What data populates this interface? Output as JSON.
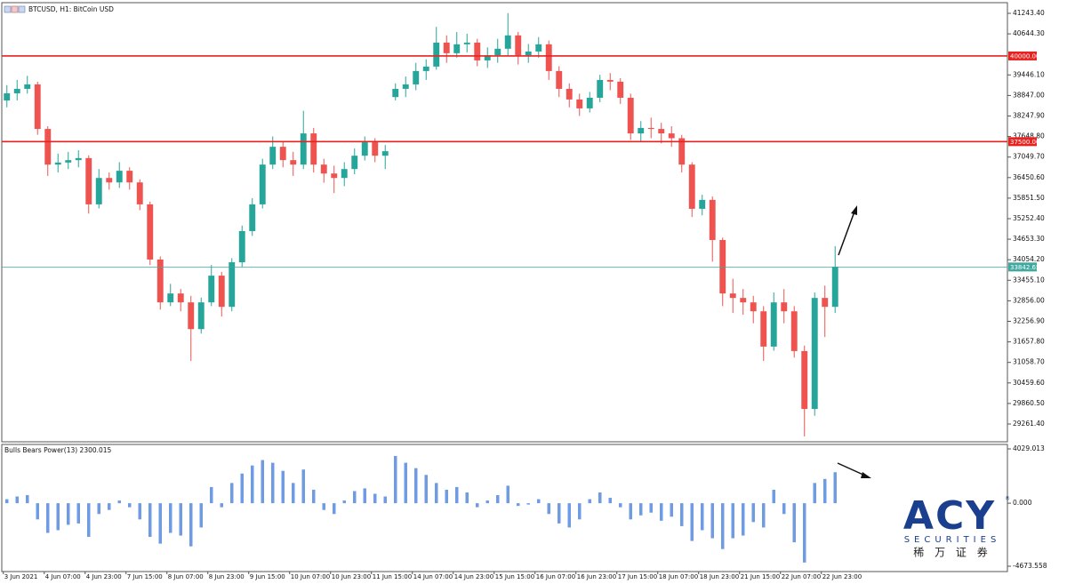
{
  "chart_data": [
    {
      "type": "candlestick",
      "title": "BTCUSD, H1:  BitCoin USD",
      "open": [
        38700,
        38910,
        39040,
        39170,
        37870,
        36830,
        36890,
        36960,
        37020,
        35670,
        36440,
        36310,
        36650,
        36310,
        35670,
        34060,
        32810,
        33070,
        32810,
        32030,
        32810,
        33590,
        32680,
        33980,
        34890,
        35670,
        36830,
        37350,
        36960,
        36830,
        37740,
        36830,
        36570,
        36440,
        36700,
        37090,
        37480,
        37090,
        38800,
        39040,
        39170,
        39560,
        39690,
        40390,
        40080,
        40340,
        40390,
        39870,
        40020,
        40210,
        40600,
        40020,
        40130,
        40340,
        39560,
        39040,
        38730,
        38470,
        38780,
        39300,
        39250,
        38780,
        37740,
        37900,
        37870,
        37740,
        37600,
        36830,
        35540,
        35800,
        34630,
        33070,
        32940,
        32810,
        32550,
        31520,
        32810,
        32550,
        31390,
        29700,
        32940,
        32680
      ],
      "high": [
        39150,
        39300,
        39420,
        39250,
        37950,
        37150,
        37200,
        37250,
        37100,
        36700,
        36600,
        36900,
        36750,
        36400,
        35750,
        34150,
        33350,
        33200,
        33000,
        32950,
        33900,
        33700,
        34100,
        35050,
        35850,
        37000,
        37650,
        37500,
        37200,
        38400,
        37900,
        37000,
        36800,
        36900,
        37300,
        37650,
        37600,
        37400,
        39200,
        39400,
        39800,
        39900,
        40850,
        40600,
        40700,
        40650,
        40500,
        40250,
        40500,
        41250,
        40700,
        40350,
        40550,
        40450,
        39700,
        39200,
        38900,
        38950,
        39450,
        39500,
        39350,
        38900,
        38100,
        38200,
        38050,
        37950,
        37700,
        36900,
        35950,
        35900,
        34700,
        33500,
        33200,
        33000,
        32700,
        33100,
        33200,
        32700,
        31550,
        33100,
        33300,
        34450
      ],
      "low": [
        38500,
        38700,
        38900,
        37700,
        36500,
        36600,
        36700,
        36750,
        35400,
        35550,
        36100,
        36150,
        36100,
        35500,
        33900,
        32600,
        32700,
        32550,
        31100,
        31900,
        32700,
        32400,
        32550,
        33850,
        34750,
        35550,
        36700,
        36750,
        36500,
        36700,
        36600,
        36300,
        36000,
        36200,
        36550,
        36950,
        36900,
        36700,
        38700,
        38800,
        39000,
        39300,
        39600,
        39800,
        39950,
        40100,
        39700,
        39650,
        39800,
        40000,
        39750,
        39800,
        39950,
        39300,
        38800,
        38500,
        38250,
        38350,
        38650,
        39000,
        38600,
        37550,
        37500,
        37600,
        37450,
        37350,
        36600,
        35300,
        35350,
        34000,
        32700,
        32500,
        32450,
        32200,
        31100,
        31400,
        32200,
        31200,
        28900,
        29500,
        31800,
        32500
      ],
      "close": [
        38910,
        39040,
        39170,
        37870,
        36830,
        36890,
        36960,
        37020,
        35670,
        36440,
        36310,
        36650,
        36310,
        35670,
        34060,
        32810,
        33070,
        32810,
        32030,
        32810,
        33590,
        32680,
        33980,
        34890,
        35670,
        36830,
        37350,
        36960,
        36830,
        37740,
        36830,
        36570,
        36440,
        36700,
        37090,
        37480,
        37090,
        37220,
        39040,
        39170,
        39560,
        39690,
        40390,
        40080,
        40340,
        40390,
        39870,
        40020,
        40210,
        40600,
        40020,
        40130,
        40340,
        39560,
        39040,
        38730,
        38470,
        38780,
        39300,
        39250,
        38780,
        37740,
        37900,
        37870,
        37740,
        37600,
        36830,
        35540,
        35800,
        34630,
        33070,
        32940,
        32810,
        32550,
        31520,
        32810,
        32550,
        31390,
        29700,
        32940,
        32680,
        33842.65
      ],
      "up_color": "#26a69a",
      "down_color": "#ef5350",
      "xlim": [
        -0.5,
        97.85
      ],
      "ylim": [
        28742.7,
        41554.6
      ],
      "yticks": [
        {
          "value": 41243.4,
          "label": "41243.40"
        },
        {
          "value": 40644.3,
          "label": "40644.30"
        },
        {
          "value": 39446.1,
          "label": "39446.10"
        },
        {
          "value": 38847,
          "label": "38847.00"
        },
        {
          "value": 38247.9,
          "label": "38247.90"
        },
        {
          "value": 37648.8,
          "label": "37648.80"
        },
        {
          "value": 37049.7,
          "label": "37049.70"
        },
        {
          "value": 36450.6,
          "label": "36450.60"
        },
        {
          "value": 35851.5,
          "label": "35851.50"
        },
        {
          "value": 35252.4,
          "label": "35252.40"
        },
        {
          "value": 34653.3,
          "label": "34653.30"
        },
        {
          "value": 34054.2,
          "label": "34054.20"
        },
        {
          "value": 33455.1,
          "label": "33455.10"
        },
        {
          "value": 32856,
          "label": "32856.00"
        },
        {
          "value": 32256.9,
          "label": "32256.90"
        },
        {
          "value": 31657.8,
          "label": "31657.80"
        },
        {
          "value": 31058.7,
          "label": "31058.70"
        },
        {
          "value": 30459.6,
          "label": "30459.60"
        },
        {
          "value": 29860.5,
          "label": "29860.50"
        },
        {
          "value": 29261.4,
          "label": "29261.40"
        }
      ],
      "levels": [
        {
          "value": 40000,
          "label": "40000.00",
          "color": "#e8231f"
        },
        {
          "value": 37500,
          "label": "37500.00",
          "color": "#e8231f"
        },
        {
          "value": 33842.65,
          "label": "33842.65",
          "color": "#3fa9a0"
        }
      ],
      "grid": false
    },
    {
      "type": "bar",
      "title": "Bulls Bears Power(13) 2300.015",
      "values": [
        300,
        500,
        600,
        -1200,
        -2200,
        -2000,
        -1600,
        -1500,
        -2500,
        -800,
        -500,
        200,
        -300,
        -1200,
        -2500,
        -3000,
        -2200,
        -2400,
        -3200,
        -1800,
        1200,
        -300,
        1500,
        2200,
        2800,
        3200,
        3000,
        2400,
        1500,
        2500,
        1000,
        -500,
        -800,
        200,
        900,
        1100,
        700,
        500,
        3500,
        3000,
        2600,
        2100,
        1500,
        1000,
        1200,
        800,
        -300,
        200,
        600,
        1300,
        -200,
        -100,
        300,
        -800,
        -1500,
        -1800,
        -1200,
        300,
        800,
        400,
        -300,
        -1200,
        -900,
        -700,
        -1300,
        -1000,
        -1700,
        -2800,
        -2000,
        -2600,
        -3400,
        -2600,
        -2400,
        -1400,
        -1800,
        1000,
        -800,
        -2900,
        -4400,
        1500,
        1800,
        2300.015
      ],
      "color": "#6f9be3",
      "xlim": [
        -0.5,
        97.85
      ],
      "ylim": [
        -5069.1,
        4358.7
      ],
      "yticks": [
        4029.013,
        {
          "value": 0,
          "label": "0.000"
        },
        -4673.558
      ],
      "xticks": [
        {
          "value": 0,
          "label": "3 Jun 2021"
        },
        {
          "value": 4,
          "label": "4 Jun 07:00"
        },
        {
          "value": 8,
          "label": "4 Jun 23:00"
        },
        {
          "value": 12,
          "label": "7 Jun 15:00"
        },
        {
          "value": 16,
          "label": "8 Jun 07:00"
        },
        {
          "value": 20,
          "label": "8 Jun 23:00"
        },
        {
          "value": 24,
          "label": "9 Jun 15:00"
        },
        {
          "value": 28,
          "label": "10 Jun 07:00"
        },
        {
          "value": 32,
          "label": "10 Jun 23:00"
        },
        {
          "value": 36,
          "label": "11 Jun 15:00"
        },
        {
          "value": 40,
          "label": "14 Jun 07:00"
        },
        {
          "value": 44,
          "label": "14 Jun 23:00"
        },
        {
          "value": 48,
          "label": "15 Jun 15:00"
        },
        {
          "value": 52,
          "label": "16 Jun 07:00"
        },
        {
          "value": 56,
          "label": "16 Jun 23:00"
        },
        {
          "value": 60,
          "label": "17 Jun 15:00"
        },
        {
          "value": 64,
          "label": "18 Jun 07:00"
        },
        {
          "value": 68,
          "label": "18 Jun 23:00"
        },
        {
          "value": 72,
          "label": "21 Jun 15:00"
        },
        {
          "value": 76,
          "label": "22 Jun 07:00"
        },
        {
          "value": 80,
          "label": "22 Jun 23:00"
        }
      ],
      "grid": false
    }
  ],
  "watermark": {
    "brand": "ACY",
    "tagline": "SECURITIES",
    "chinese": "稀 万 证 券"
  }
}
